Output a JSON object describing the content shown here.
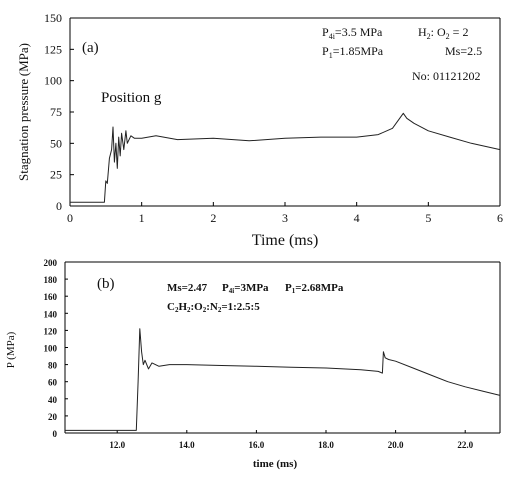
{
  "charts": [
    {
      "panel": "(a)",
      "ylabel": "Stagnation pressure (MPa)",
      "xlabel": "Time (ms)",
      "yticks": [
        "0",
        "25",
        "50",
        "75",
        "100",
        "125",
        "150"
      ],
      "xticks": [
        "0",
        "1",
        "2",
        "3",
        "4",
        "5",
        "6"
      ],
      "annot": {
        "p4i_prefix": "P",
        "p4i_sub": "4i",
        "p4i_rest": "=3.5 MPa",
        "h2o2": "H",
        "h2o2_sub1": "2",
        "h2o2_mid": ": O",
        "h2o2_sub2": "2",
        "h2o2_rest": " = 2",
        "p1_prefix": "P",
        "p1_sub": "1",
        "p1_rest": "=1.85MPa",
        "ms": "Ms=2.5",
        "no": "No: 01121202",
        "position": "Position  g"
      }
    },
    {
      "panel": "(b)",
      "ylabel": "P (MPa)",
      "xlabel": "time  (ms)",
      "yticks": [
        "0",
        "20",
        "40",
        "60",
        "80",
        "100",
        "120",
        "140",
        "160",
        "180",
        "200"
      ],
      "xticks": [
        "12.0",
        "14.0",
        "16.0",
        "18.0",
        "20.0",
        "22.0"
      ],
      "annot": {
        "ms": "Ms=2.47",
        "p4_prefix": "P",
        "p4_sub": "4i",
        "p4_rest": "=3MPa",
        "p1_prefix": "P",
        "p1_sub": "1",
        "p1_rest": "=2.68MPa",
        "mix": "C",
        "mix_s1": "2",
        "mix_m1": "H",
        "mix_s2": "2",
        "mix_m2": ":O",
        "mix_s3": "2",
        "mix_m3": ":N",
        "mix_s4": "2",
        "mix_rest": "=1:2.5:5"
      }
    }
  ],
  "chart_data": [
    {
      "type": "line",
      "xlabel": "Time (ms)",
      "ylabel": "Stagnation pressure (MPa)",
      "xlim": [
        0,
        6
      ],
      "ylim": [
        0,
        150
      ],
      "series": [
        {
          "x": [
            0,
            0.3,
            0.48,
            0.5,
            0.52,
            0.55,
            0.58,
            0.6,
            0.62,
            0.64,
            0.66,
            0.68,
            0.7,
            0.72,
            0.75,
            0.78,
            0.8,
            0.85,
            0.9,
            1.0,
            1.2,
            1.5,
            2.0,
            2.5,
            3.0,
            3.5,
            4.0,
            4.3,
            4.5,
            4.6,
            4.65,
            4.7,
            4.8,
            5.0,
            5.3,
            5.6,
            6.0
          ],
          "y": [
            3,
            3,
            3,
            20,
            18,
            38,
            45,
            63,
            35,
            50,
            30,
            55,
            40,
            58,
            45,
            60,
            50,
            56,
            54,
            54,
            56,
            53,
            54,
            52,
            54,
            55,
            55,
            57,
            62,
            70,
            74,
            70,
            66,
            60,
            55,
            50,
            45
          ]
        }
      ]
    },
    {
      "type": "line",
      "xlabel": "time (ms)",
      "ylabel": "P (MPa)",
      "xlim": [
        10.5,
        23
      ],
      "ylim": [
        0,
        200
      ],
      "series": [
        {
          "x": [
            10.5,
            12.0,
            12.55,
            12.6,
            12.65,
            12.7,
            12.75,
            12.8,
            12.9,
            13.0,
            13.2,
            13.5,
            14.0,
            15.0,
            16.0,
            17.0,
            18.0,
            19.0,
            19.5,
            19.62,
            19.65,
            19.7,
            19.8,
            20.0,
            20.5,
            21.0,
            21.5,
            22.0,
            22.5,
            23.0
          ],
          "y": [
            3,
            3,
            3,
            60,
            122,
            95,
            80,
            85,
            75,
            82,
            78,
            80,
            80,
            79,
            78,
            77,
            76,
            74,
            72,
            70,
            95,
            88,
            86,
            84,
            76,
            68,
            60,
            54,
            49,
            44
          ]
        }
      ]
    }
  ]
}
